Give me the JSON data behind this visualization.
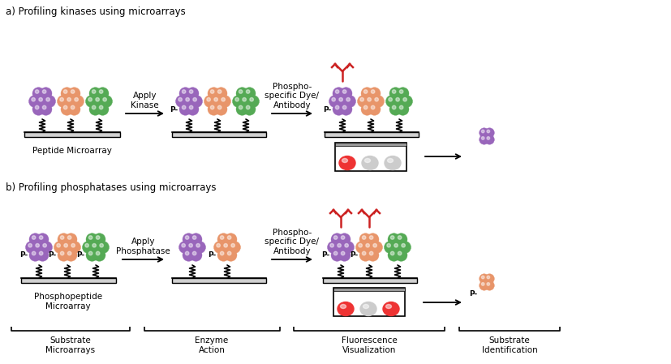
{
  "purple": "#9966BB",
  "orange": "#E8956A",
  "green": "#55AA55",
  "red": "#EE3333",
  "white_spot": "#CCCCCC",
  "antibody_red": "#CC2222",
  "bg": "#FFFFFF",
  "title_a": "a) Profiling kinases using microarrays",
  "title_b": "b) Profiling phosphatases using microarrays",
  "label_peptide": "Peptide Microarray",
  "label_phospho": "Phosphopeptide\nMicroarray",
  "label_apply_kinase": "Apply\nKinase",
  "label_apply_phosphatase": "Apply\nPhosphatase",
  "label_phospho_dye": "Phospho-\nspecific Dye/\nAntibody",
  "label_substrate": "Substrate\nMicroarrays",
  "label_enzyme": "Enzyme\nAction",
  "label_fluorescence": "Fluorescence\nVisualization",
  "label_identification": "Substrate\nIdentification",
  "font_size_title": 8.5,
  "font_size_label": 7.5,
  "font_size_p": 6.5
}
